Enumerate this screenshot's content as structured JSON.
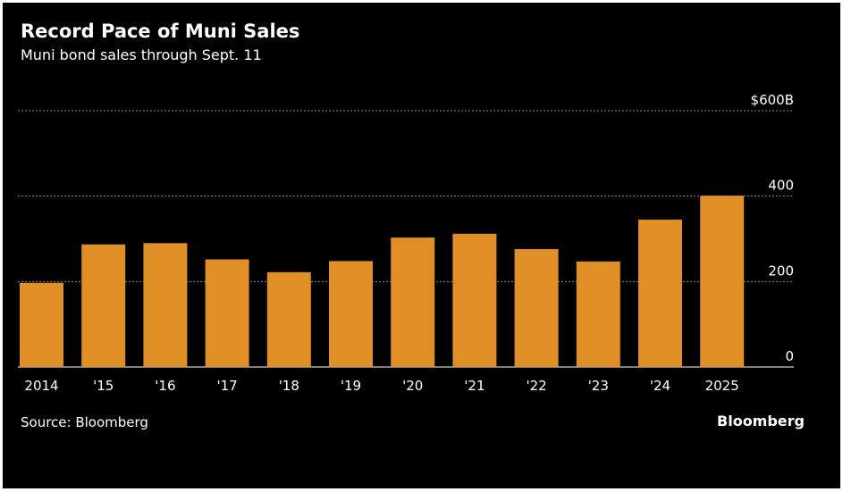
{
  "chart_data": {
    "type": "bar",
    "title": "Record Pace of Muni Sales",
    "subtitle": "Muni bond sales through Sept. 11",
    "source": "Source: Bloomberg",
    "brand": "Bloomberg",
    "categories": [
      "2014",
      "'15",
      "'16",
      "'17",
      "'18",
      "'19",
      "'20",
      "'21",
      "'22",
      "'23",
      "'24",
      "2025"
    ],
    "values": [
      197,
      287,
      290,
      252,
      222,
      248,
      303,
      312,
      276,
      247,
      345,
      401
    ],
    "ylim": [
      0,
      600
    ],
    "yticks": [
      0,
      200,
      400,
      600
    ],
    "ytick_labels": [
      "0",
      "200",
      "400",
      "$600B"
    ],
    "grid": true,
    "legend": "none",
    "colors": {
      "bar": "#E08F27",
      "background": "#000000",
      "grid": "#8a8a8a",
      "text": "#ffffff"
    }
  }
}
